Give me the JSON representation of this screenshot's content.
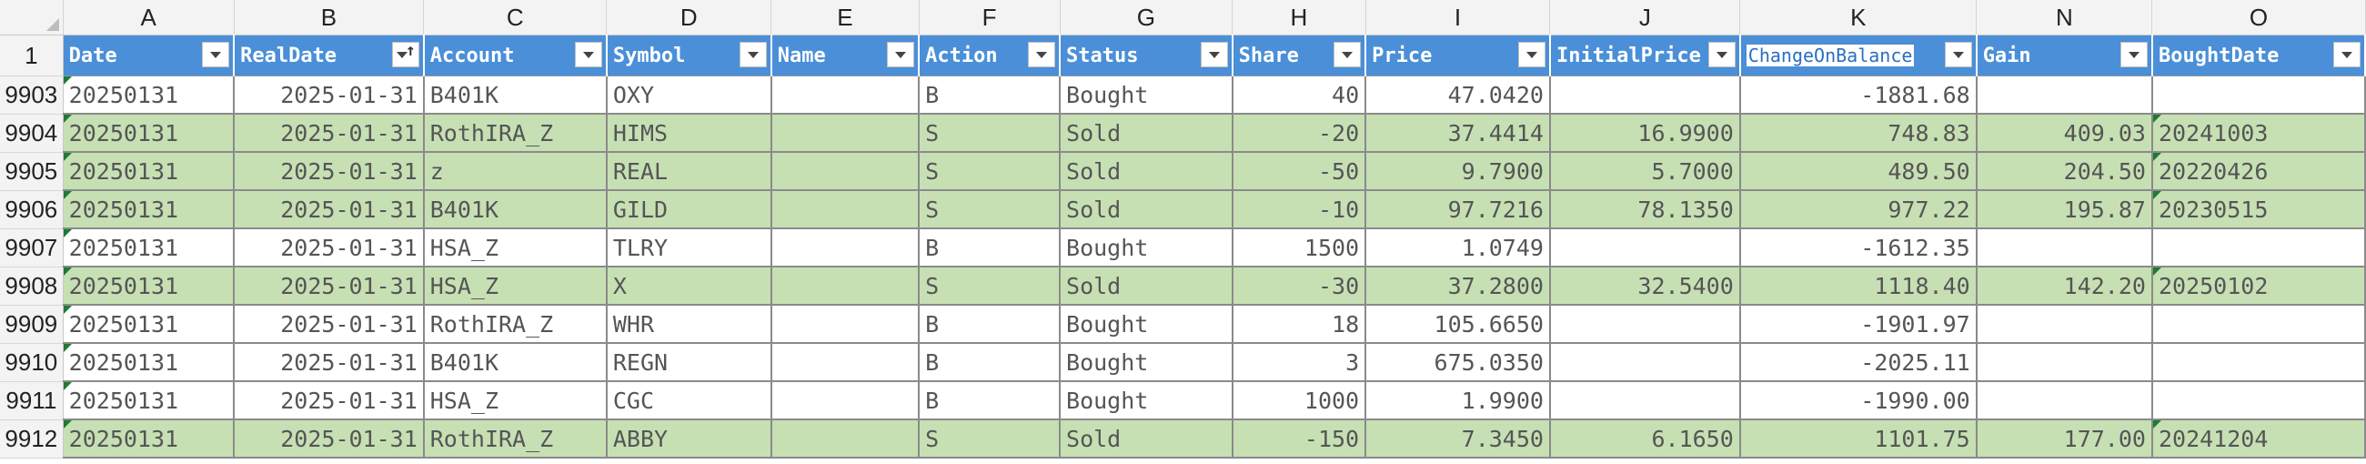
{
  "column_letters": [
    "A",
    "B",
    "C",
    "D",
    "E",
    "F",
    "G",
    "H",
    "I",
    "J",
    "K",
    "N",
    "O"
  ],
  "headers": [
    "Date",
    "RealDate",
    "Account",
    "Symbol",
    "Name",
    "Action",
    "Status",
    "Share",
    "Price",
    "InitialPrice",
    "ChangeOnBalance",
    "Gain",
    "BoughtDate"
  ],
  "header_row_number": "1",
  "colors": {
    "header_blue": "#4a8fd8",
    "row_green": "#c6e0b4",
    "comment_marker": "#1e7a35"
  },
  "rows": [
    {
      "n": "9903",
      "green": false,
      "cells": [
        "20250131",
        "2025-01-31",
        "B401K",
        "OXY",
        "",
        "B",
        "Bought",
        "40",
        "47.0420",
        "",
        "-1881.68",
        "",
        ""
      ]
    },
    {
      "n": "9904",
      "green": true,
      "cells": [
        "20250131",
        "2025-01-31",
        "RothIRA_Z",
        "HIMS",
        "",
        "S",
        "Sold",
        "-20",
        "37.4414",
        "16.9900",
        "748.83",
        "409.03",
        "20241003"
      ]
    },
    {
      "n": "9905",
      "green": true,
      "cells": [
        "20250131",
        "2025-01-31",
        "z",
        "REAL",
        "",
        "S",
        "Sold",
        "-50",
        "9.7900",
        "5.7000",
        "489.50",
        "204.50",
        "20220426"
      ]
    },
    {
      "n": "9906",
      "green": true,
      "cells": [
        "20250131",
        "2025-01-31",
        "B401K",
        "GILD",
        "",
        "S",
        "Sold",
        "-10",
        "97.7216",
        "78.1350",
        "977.22",
        "195.87",
        "20230515"
      ]
    },
    {
      "n": "9907",
      "green": false,
      "cells": [
        "20250131",
        "2025-01-31",
        "HSA_Z",
        "TLRY",
        "",
        "B",
        "Bought",
        "1500",
        "1.0749",
        "",
        "-1612.35",
        "",
        ""
      ]
    },
    {
      "n": "9908",
      "green": true,
      "cells": [
        "20250131",
        "2025-01-31",
        "HSA_Z",
        "X",
        "",
        "S",
        "Sold",
        "-30",
        "37.2800",
        "32.5400",
        "1118.40",
        "142.20",
        "20250102"
      ]
    },
    {
      "n": "9909",
      "green": false,
      "cells": [
        "20250131",
        "2025-01-31",
        "RothIRA_Z",
        "WHR",
        "",
        "B",
        "Bought",
        "18",
        "105.6650",
        "",
        "-1901.97",
        "",
        ""
      ]
    },
    {
      "n": "9910",
      "green": false,
      "cells": [
        "20250131",
        "2025-01-31",
        "B401K",
        "REGN",
        "",
        "B",
        "Bought",
        "3",
        "675.0350",
        "",
        "-2025.11",
        "",
        ""
      ]
    },
    {
      "n": "9911",
      "green": false,
      "cells": [
        "20250131",
        "2025-01-31",
        "HSA_Z",
        "CGC",
        "",
        "B",
        "Bought",
        "1000",
        "1.9900",
        "",
        "-1990.00",
        "",
        ""
      ]
    },
    {
      "n": "9912",
      "green": true,
      "cells": [
        "20250131",
        "2025-01-31",
        "RothIRA_Z",
        "ABBY",
        "",
        "S",
        "Sold",
        "-150",
        "7.3450",
        "6.1650",
        "1101.75",
        "177.00",
        "20241204"
      ]
    }
  ]
}
